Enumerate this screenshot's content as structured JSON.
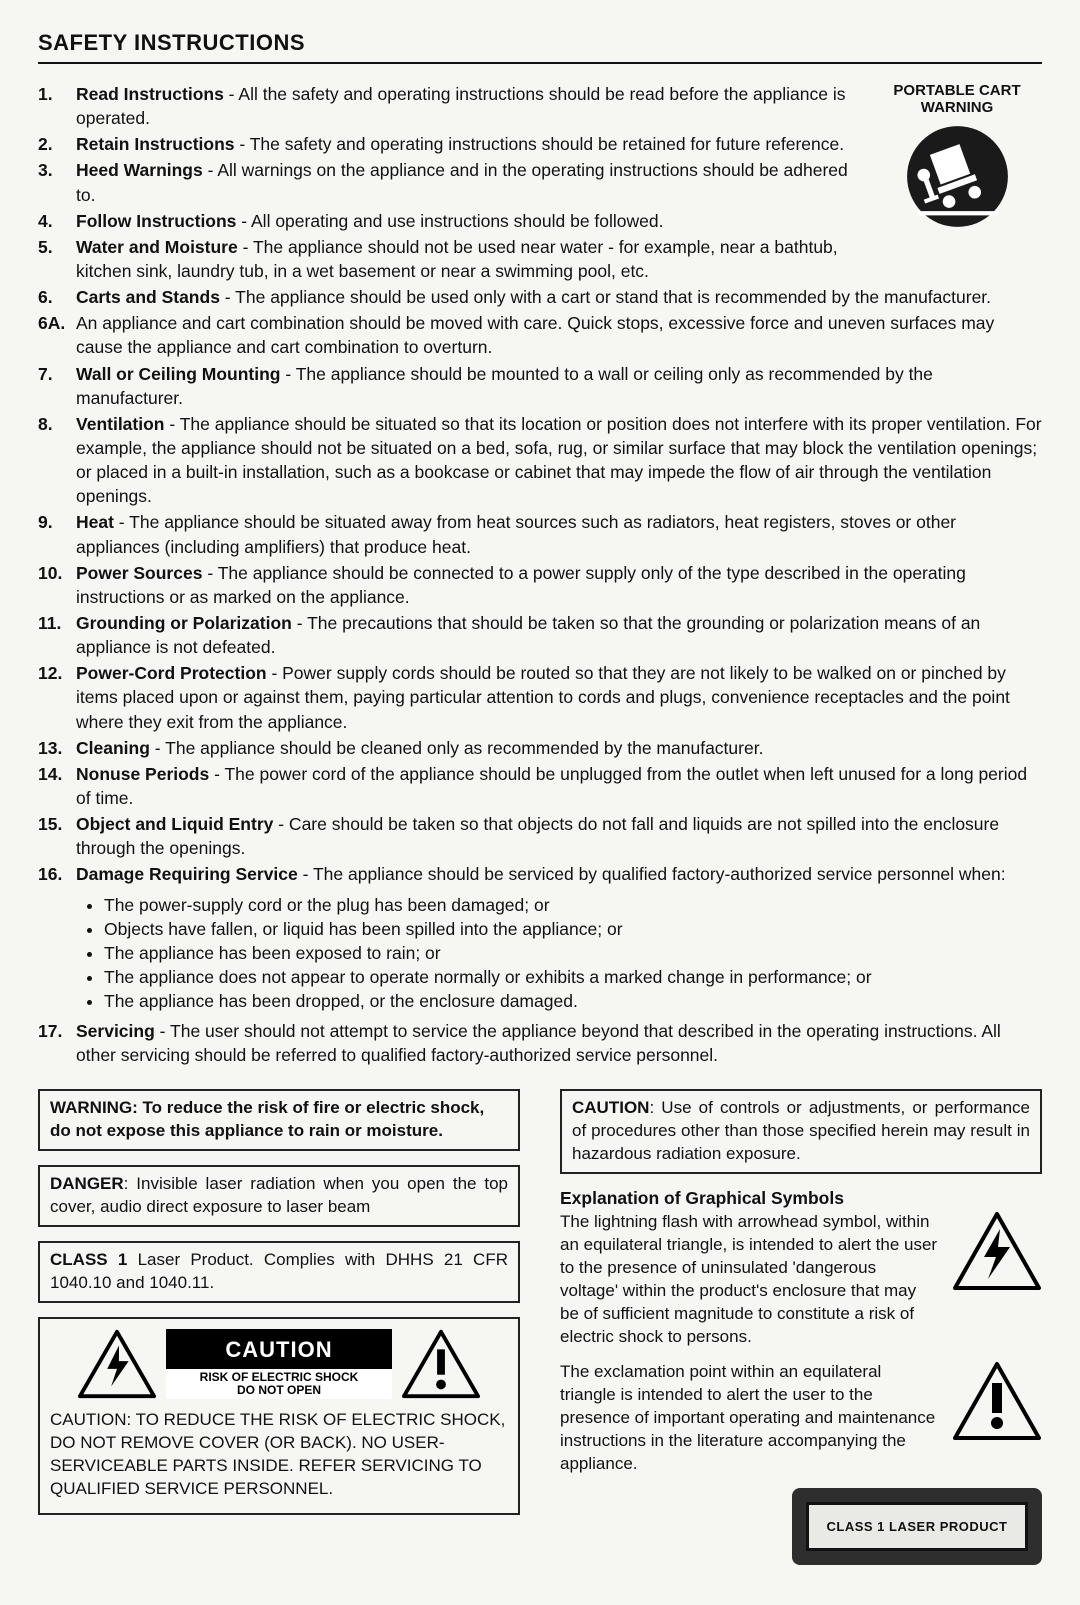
{
  "title": "SAFETY INSTRUCTIONS",
  "cart_warning": {
    "line1": "PORTABLE CART",
    "line2": "WARNING"
  },
  "instructions": [
    {
      "num": "1.",
      "name": "Read Instructions",
      "text": " - All the safety and operating instructions should be read before the appliance is operated."
    },
    {
      "num": "2.",
      "name": "Retain Instructions",
      "text": " - The safety and operating instructions should be retained for future reference."
    },
    {
      "num": "3.",
      "name": "Heed Warnings",
      "text": " - All warnings on the appliance and in the operating instructions should be adhered to."
    },
    {
      "num": "4.",
      "name": "Follow Instructions",
      "text": " - All operating and use instructions should be followed."
    },
    {
      "num": "5.",
      "name": "Water and Moisture",
      "text": " - The appliance should not be used near water - for example, near a bathtub, kitchen sink, laundry tub, in a wet basement or near a swimming pool, etc."
    },
    {
      "num": "6.",
      "name": "Carts and Stands",
      "text": " - The appliance should be used only with a cart or stand that is recommended by the manufacturer."
    },
    {
      "num": "6A.",
      "name": "",
      "text": "An appliance and cart combination should be moved with care. Quick stops, excessive force and uneven surfaces may cause the appliance and cart combination to overturn."
    },
    {
      "num": "7.",
      "name": "Wall or Ceiling Mounting",
      "text": " - The appliance should be mounted to a wall or ceiling only as recommended by the manufacturer."
    },
    {
      "num": "8.",
      "name": "Ventilation",
      "text": " - The appliance should be situated so that its location or position does not interfere with its proper ventilation. For example, the appliance should not be situated on a bed, sofa, rug, or similar surface that may block the ventilation openings; or placed in a built-in installation, such as a bookcase or cabinet that may impede the flow of air through the ventilation openings."
    },
    {
      "num": "9.",
      "name": "Heat",
      "text": " - The appliance should be situated away from heat sources such as radiators, heat registers, stoves or other appliances (including amplifiers) that produce heat."
    },
    {
      "num": "10.",
      "name": "Power Sources",
      "text": " - The appliance should be connected to a power supply only of the type described in the operating instructions or as marked on the appliance."
    },
    {
      "num": "11.",
      "name": "Grounding or Polarization",
      "text": " - The precautions that should be taken so that the grounding or polarization means of an appliance is not defeated."
    },
    {
      "num": "12.",
      "name": "Power-Cord Protection",
      "text": " - Power supply cords should be routed so that they are not likely to be walked on or pinched by items placed upon or against them, paying particular attention to cords and plugs, convenience receptacles and the point where they exit from the appliance."
    },
    {
      "num": "13.",
      "name": "Cleaning",
      "text": " - The appliance should be cleaned only as recommended by the manufacturer."
    },
    {
      "num": "14.",
      "name": "Nonuse Periods",
      "text": " - The power cord of the appliance should be unplugged from the outlet when left unused for a long period of time."
    },
    {
      "num": "15.",
      "name": "Object and Liquid Entry",
      "text": " - Care should be taken so that objects do not fall and liquids are not spilled into the enclosure through the openings."
    },
    {
      "num": "16.",
      "name": "Damage Requiring Service",
      "text": " - The appliance should be serviced by qualified factory-authorized service personnel when:"
    },
    {
      "num": "17.",
      "name": "Servicing",
      "text": " - The user should not attempt to service the appliance beyond that described in the operating instructions. All other servicing should be referred to qualified factory-authorized service personnel."
    }
  ],
  "damage_sub": [
    "The power-supply cord or the plug has been damaged; or",
    "Objects have fallen, or liquid has been spilled into the appliance; or",
    "The appliance has been exposed to rain; or",
    "The appliance does not appear to operate normally or exhibits a marked change in performance; or",
    "The appliance has been dropped, or the enclosure damaged."
  ],
  "left_boxes": {
    "warning": "WARNING: To reduce the risk of fire or electric shock, do not expose this appliance to rain or moisture.",
    "danger_label": "DANGER",
    "danger_text": ": Invisible laser radiation when you open the top cover, audio direct exposure to laser beam",
    "class1_label": "CLASS 1",
    "class1_text": " Laser Product. Complies with DHHS 21 CFR 1040.10 and 1040.11."
  },
  "caution_art": {
    "title": "CAUTION",
    "sub1": "RISK OF ELECTRIC SHOCK",
    "sub2": "DO NOT OPEN"
  },
  "caution_body": "CAUTION: TO REDUCE THE RISK OF ELECTRIC SHOCK, DO NOT REMOVE COVER (OR BACK). NO USER-SERVICEABLE PARTS INSIDE. REFER SERVICING TO QUALIFIED SERVICE PERSONNEL.",
  "right_caution_label": "CAUTION",
  "right_caution_text": ": Use of controls or adjustments, or performance of procedures other than those specified herein may result in hazardous radiation exposure.",
  "symbols_heading": "Explanation of Graphical Symbols",
  "symbol_lightning": "The lightning flash with arrowhead symbol, within an equilateral triangle, is intended to alert the user to the presence of uninsulated 'dangerous voltage' within the product's enclosure that may be of sufficient magnitude to constitute a risk of electric shock to persons.",
  "symbol_exclaim": "The exclamation point within an equilateral triangle is intended to alert the user to the presence of important operating and maintenance instructions in the literature accompanying the appliance.",
  "laser_label": "CLASS 1 LASER PRODUCT",
  "colors": {
    "page_bg": "#f6f6f3",
    "text": "#111111",
    "border": "#222222",
    "black": "#000000",
    "cart_fill": "#1a1a1a",
    "laser_outer": "#2e2e2e",
    "laser_inner": "#e9e9e6"
  }
}
